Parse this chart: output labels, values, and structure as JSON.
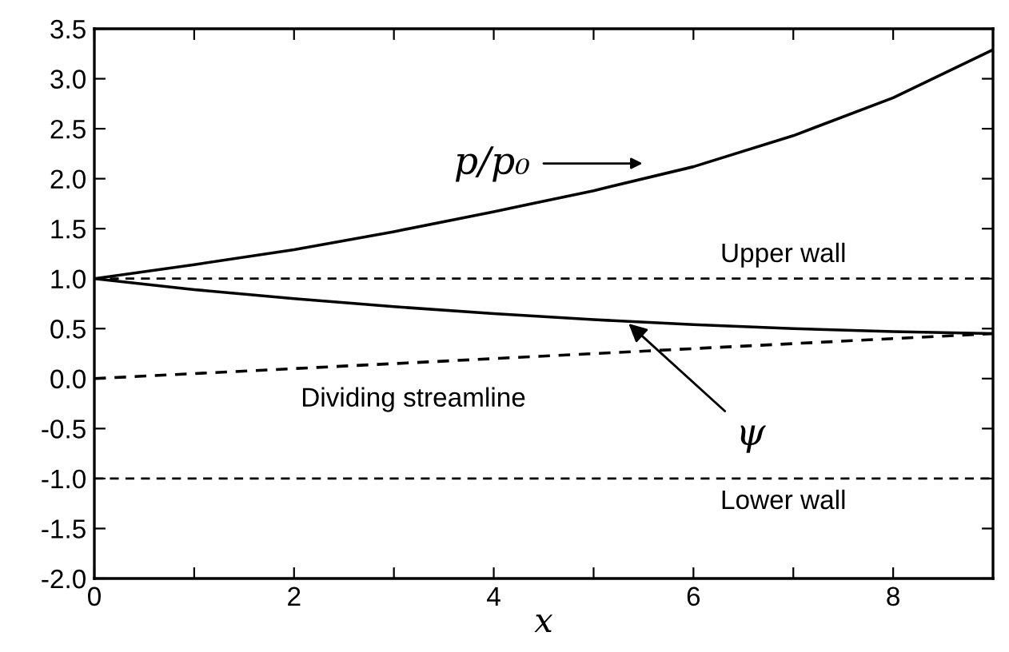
{
  "chart_data": {
    "type": "line",
    "xlabel": "x",
    "xlim": [
      0,
      9
    ],
    "xticks": [
      0,
      {
        "value": 1,
        "label": null
      },
      2,
      {
        "value": 3,
        "label": null
      },
      4,
      {
        "value": 5,
        "label": null
      },
      6,
      {
        "value": 7,
        "label": null
      },
      8
    ],
    "ylim": [
      -2.0,
      3.5
    ],
    "yticks": [
      {
        "value": -2,
        "label": "-2.0"
      },
      {
        "value": -1.5,
        "label": "-1.5"
      },
      {
        "value": -1,
        "label": "-1.0"
      },
      {
        "value": -0.5,
        "label": "-0.5"
      },
      {
        "value": 0,
        "label": "0.0"
      },
      {
        "value": 0.5,
        "label": "0.5"
      },
      {
        "value": 1,
        "label": "1.0"
      },
      {
        "value": 1.5,
        "label": "1.5"
      },
      {
        "value": 2,
        "label": "2.0"
      },
      {
        "value": 2.5,
        "label": "2.5"
      },
      {
        "value": 3,
        "label": "3.0"
      },
      {
        "value": 3.5,
        "label": "3.5"
      }
    ],
    "grid": false,
    "legend": false,
    "marker": "none",
    "series": [
      {
        "color": "#000000",
        "line_style": "solid",
        "x": [
          0,
          1,
          2,
          3,
          4,
          5,
          6,
          7,
          8,
          9
        ],
        "values": [
          1.0,
          1.14,
          1.29,
          1.47,
          1.67,
          1.88,
          2.12,
          2.43,
          2.81,
          3.29
        ]
      },
      {
        "color": "#000000",
        "line_style": "solid",
        "x": [
          0,
          1,
          2,
          3,
          4,
          5,
          6,
          7,
          8,
          9
        ],
        "values": [
          1.0,
          0.89,
          0.8,
          0.72,
          0.65,
          0.59,
          0.54,
          0.5,
          0.47,
          0.45
        ]
      },
      {
        "color": "#000000",
        "line_style": "dashed",
        "x": [
          0,
          9
        ],
        "values": [
          0.0,
          0.45
        ]
      }
    ],
    "ref_lines": [
      {
        "axis": "y",
        "value": 1.0,
        "label": "Upper wall",
        "line_style": "dashed",
        "color": "#000000"
      },
      {
        "axis": "y",
        "value": -1.0,
        "label": "Lower wall",
        "line_style": "dashed",
        "color": "#000000"
      }
    ],
    "annotations": [
      "p/p₀",
      {
        "text": "ψ",
        "x": 5.35,
        "y": 0.55
      },
      "Dividing streamline"
    ]
  }
}
